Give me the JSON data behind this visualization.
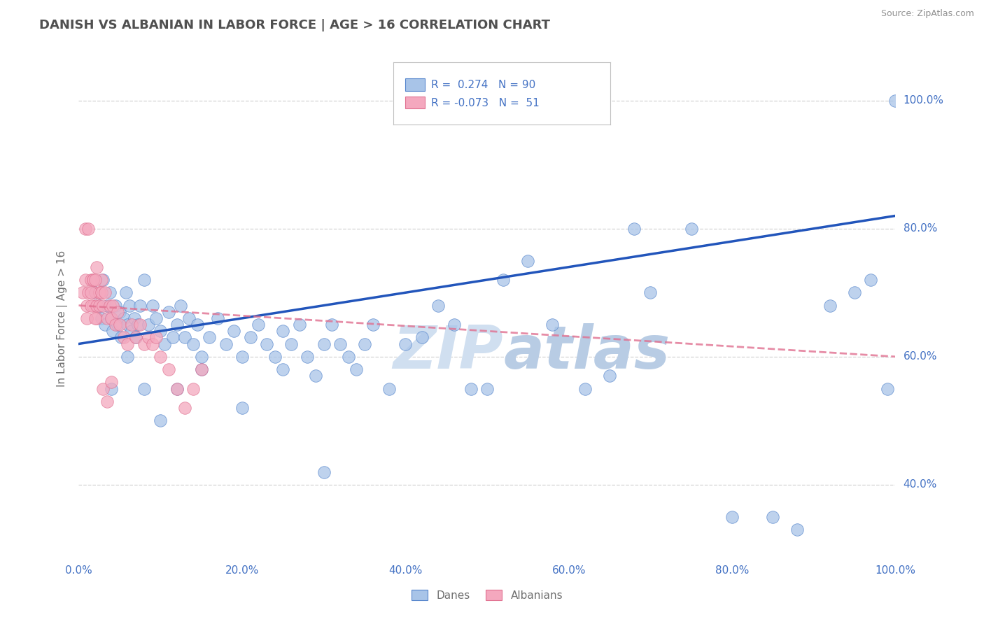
{
  "title": "DANISH VS ALBANIAN IN LABOR FORCE | AGE > 16 CORRELATION CHART",
  "source_text": "Source: ZipAtlas.com",
  "ylabel": "In Labor Force | Age > 16",
  "xlim": [
    0.0,
    1.0
  ],
  "ylim": [
    0.28,
    1.04
  ],
  "xticks": [
    0.0,
    0.2,
    0.4,
    0.6,
    0.8,
    1.0
  ],
  "yticks": [
    0.4,
    0.6,
    0.8,
    1.0
  ],
  "xtick_labels": [
    "0.0%",
    "20.0%",
    "40.0%",
    "60.0%",
    "80.0%",
    "100.0%"
  ],
  "ytick_labels": [
    "40.0%",
    "60.0%",
    "80.0%",
    "100.0%"
  ],
  "danes_R": 0.274,
  "danes_N": 90,
  "albanians_R": -0.073,
  "albanians_N": 51,
  "danes_color": "#a8c4e8",
  "albanians_color": "#f4a8be",
  "danes_edge_color": "#5585cc",
  "albanians_edge_color": "#e07090",
  "danes_line_color": "#2255bb",
  "albanians_line_color": "#e07090",
  "tick_color": "#4472c4",
  "background_color": "#ffffff",
  "grid_color": "#c8c8c8",
  "title_color": "#505050",
  "axis_color": "#707070",
  "legend_box_danes": "#a8c4e8",
  "legend_box_albanians": "#f4a8be",
  "legend_text_color": "#4472c4",
  "watermark_color": "#d0dff0",
  "danes_trend_x": [
    0.0,
    1.0
  ],
  "danes_trend_y": [
    0.62,
    0.82
  ],
  "albanians_trend_x": [
    0.0,
    1.0
  ],
  "albanians_trend_y": [
    0.68,
    0.6
  ],
  "danes_x": [
    0.02,
    0.025,
    0.028,
    0.03,
    0.032,
    0.035,
    0.038,
    0.04,
    0.042,
    0.045,
    0.048,
    0.05,
    0.052,
    0.055,
    0.058,
    0.06,
    0.062,
    0.065,
    0.068,
    0.07,
    0.072,
    0.075,
    0.08,
    0.085,
    0.09,
    0.095,
    0.1,
    0.105,
    0.11,
    0.115,
    0.12,
    0.125,
    0.13,
    0.135,
    0.14,
    0.145,
    0.15,
    0.16,
    0.17,
    0.18,
    0.19,
    0.2,
    0.21,
    0.22,
    0.23,
    0.24,
    0.25,
    0.26,
    0.27,
    0.28,
    0.29,
    0.3,
    0.31,
    0.32,
    0.33,
    0.34,
    0.35,
    0.36,
    0.38,
    0.4,
    0.42,
    0.44,
    0.46,
    0.48,
    0.5,
    0.52,
    0.55,
    0.58,
    0.62,
    0.65,
    0.68,
    0.7,
    0.75,
    0.8,
    0.85,
    0.88,
    0.92,
    0.95,
    0.97,
    0.99,
    0.04,
    0.06,
    0.08,
    0.1,
    0.12,
    0.15,
    0.2,
    0.25,
    0.3,
    1.0
  ],
  "danes_y": [
    0.7,
    0.68,
    0.66,
    0.72,
    0.65,
    0.68,
    0.7,
    0.66,
    0.64,
    0.68,
    0.65,
    0.67,
    0.63,
    0.66,
    0.7,
    0.65,
    0.68,
    0.64,
    0.66,
    0.63,
    0.65,
    0.68,
    0.72,
    0.65,
    0.68,
    0.66,
    0.64,
    0.62,
    0.67,
    0.63,
    0.65,
    0.68,
    0.63,
    0.66,
    0.62,
    0.65,
    0.6,
    0.63,
    0.66,
    0.62,
    0.64,
    0.6,
    0.63,
    0.65,
    0.62,
    0.6,
    0.64,
    0.62,
    0.65,
    0.6,
    0.57,
    0.62,
    0.65,
    0.62,
    0.6,
    0.58,
    0.62,
    0.65,
    0.55,
    0.62,
    0.63,
    0.68,
    0.65,
    0.55,
    0.55,
    0.72,
    0.75,
    0.65,
    0.55,
    0.57,
    0.8,
    0.7,
    0.8,
    0.35,
    0.35,
    0.33,
    0.68,
    0.7,
    0.72,
    0.55,
    0.55,
    0.6,
    0.55,
    0.5,
    0.55,
    0.58,
    0.52,
    0.58,
    0.42,
    1.0
  ],
  "albanians_x": [
    0.005,
    0.008,
    0.01,
    0.012,
    0.015,
    0.018,
    0.02,
    0.022,
    0.025,
    0.028,
    0.01,
    0.015,
    0.018,
    0.02,
    0.022,
    0.025,
    0.008,
    0.012,
    0.015,
    0.018,
    0.02,
    0.022,
    0.025,
    0.028,
    0.03,
    0.032,
    0.035,
    0.038,
    0.04,
    0.042,
    0.045,
    0.048,
    0.05,
    0.055,
    0.06,
    0.065,
    0.07,
    0.075,
    0.08,
    0.085,
    0.09,
    0.095,
    0.1,
    0.11,
    0.12,
    0.13,
    0.14,
    0.15,
    0.03,
    0.035,
    0.04
  ],
  "albanians_y": [
    0.7,
    0.72,
    0.68,
    0.7,
    0.72,
    0.68,
    0.7,
    0.66,
    0.7,
    0.72,
    0.66,
    0.68,
    0.72,
    0.66,
    0.68,
    0.7,
    0.8,
    0.8,
    0.7,
    0.72,
    0.72,
    0.74,
    0.68,
    0.7,
    0.68,
    0.7,
    0.66,
    0.68,
    0.66,
    0.68,
    0.65,
    0.67,
    0.65,
    0.63,
    0.62,
    0.65,
    0.63,
    0.65,
    0.62,
    0.63,
    0.62,
    0.63,
    0.6,
    0.58,
    0.55,
    0.52,
    0.55,
    0.58,
    0.55,
    0.53,
    0.56
  ]
}
